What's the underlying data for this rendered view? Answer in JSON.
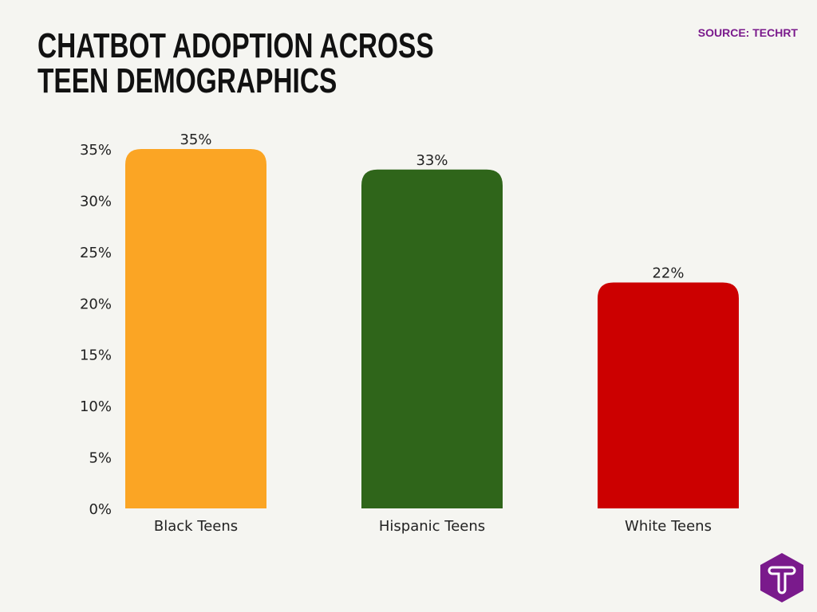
{
  "title": "Chatbot Adoption Across Teen Demographics",
  "source": "SOURCE: TECHRT",
  "logo_text": "T",
  "chart_data": {
    "type": "bar",
    "title": "Chatbot Adoption Across Teen Demographics",
    "xlabel": "",
    "ylabel": "",
    "categories": [
      "Black Teens",
      "Hispanic Teens",
      "White Teens"
    ],
    "values": [
      35,
      33,
      22
    ],
    "data_labels": [
      "35%",
      "33%",
      "22%"
    ],
    "colors": [
      "#fba524",
      "#2f651a",
      "#cc0000"
    ],
    "ylim": [
      0,
      35
    ],
    "yticks": [
      0,
      5,
      10,
      15,
      20,
      25,
      30,
      35
    ],
    "ytick_labels": [
      "0%",
      "5%",
      "10%",
      "15%",
      "20%",
      "25%",
      "30%",
      "35%"
    ],
    "grid": false,
    "legend": "none"
  }
}
